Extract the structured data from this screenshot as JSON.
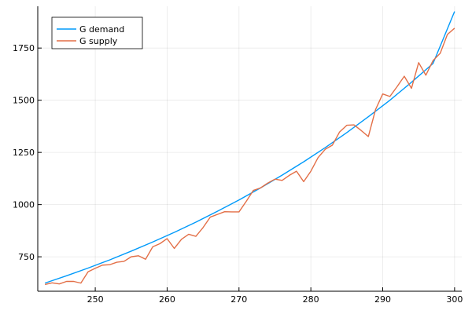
{
  "chart_data": {
    "type": "line",
    "xlim": [
      242,
      301
    ],
    "ylim": [
      585,
      1950
    ],
    "x_ticks": [
      250,
      260,
      270,
      280,
      290,
      300
    ],
    "y_ticks": [
      750,
      1000,
      1250,
      1500,
      1750
    ],
    "x_tick_labels": [
      "250",
      "260",
      "270",
      "280",
      "290",
      "300"
    ],
    "y_tick_labels": [
      "750",
      "1000",
      "1250",
      "1500",
      "1750"
    ],
    "grid": true,
    "legend_position": "top-left",
    "series": [
      {
        "name": "G demand",
        "color": "#009AFA",
        "x": [
          243,
          246,
          249,
          252,
          255,
          258,
          261,
          264,
          267,
          270,
          273,
          276,
          279,
          282,
          285,
          288,
          291,
          294,
          297,
          300
        ],
        "y": [
          624,
          659,
          696,
          735,
          777,
          821,
          867,
          916,
          968,
          1022,
          1080,
          1141,
          1205,
          1273,
          1345,
          1421,
          1500,
          1586,
          1676,
          1925
        ]
      },
      {
        "name": "G supply",
        "color": "#E36F47",
        "x": [
          243,
          244,
          245,
          246,
          247,
          248,
          249,
          250,
          251,
          252,
          253,
          254,
          255,
          256,
          257,
          258,
          259,
          260,
          261,
          262,
          263,
          264,
          265,
          266,
          267,
          268,
          269,
          270,
          271,
          272,
          273,
          274,
          275,
          276,
          277,
          278,
          279,
          280,
          281,
          282,
          283,
          284,
          285,
          286,
          287,
          288,
          289,
          290,
          291,
          292,
          293,
          294,
          295,
          296,
          297,
          298,
          299,
          300
        ],
        "y": [
          617,
          625,
          620,
          632,
          632,
          624,
          678,
          695,
          710,
          712,
          724,
          728,
          750,
          755,
          738,
          798,
          813,
          837,
          790,
          834,
          858,
          848,
          890,
          940,
          953,
          966,
          965,
          965,
          1015,
          1068,
          1080,
          1103,
          1122,
          1116,
          1140,
          1160,
          1110,
          1160,
          1225,
          1265,
          1285,
          1348,
          1380,
          1382,
          1355,
          1326,
          1455,
          1530,
          1518,
          1565,
          1615,
          1557,
          1680,
          1620,
          1690,
          1725,
          1815,
          1845
        ]
      }
    ]
  }
}
